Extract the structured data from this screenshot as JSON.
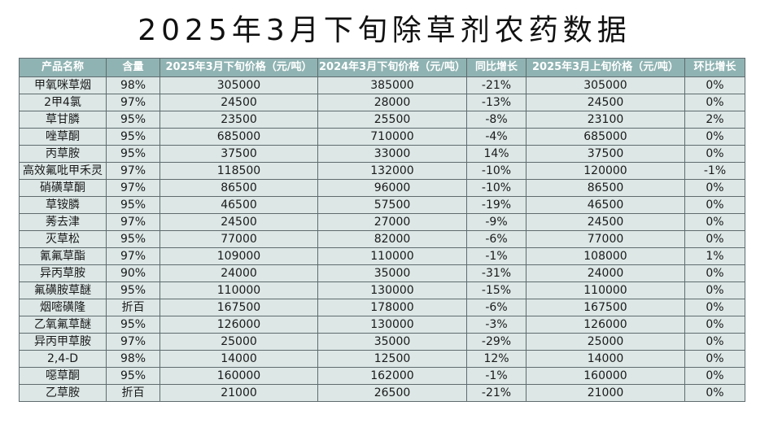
{
  "title": "2025年3月下旬除草剂农药数据",
  "table": {
    "headers": [
      "产品名称",
      "含量",
      "2025年3月下旬价格（元/吨）",
      "2024年3月下旬价格（元/吨）",
      "同比增长",
      "2025年3月上旬价格（元/吨）",
      "环比增长"
    ],
    "rows": [
      [
        "甲氧咪草烟",
        "98%",
        "305000",
        "385000",
        "-21%",
        "305000",
        "0%"
      ],
      [
        "2甲4氯",
        "97%",
        "24500",
        "28000",
        "-13%",
        "24500",
        "0%"
      ],
      [
        "草甘膦",
        "95%",
        "23500",
        "25500",
        "-8%",
        "23100",
        "2%"
      ],
      [
        "唑草酮",
        "95%",
        "685000",
        "710000",
        "-4%",
        "685000",
        "0%"
      ],
      [
        "丙草胺",
        "95%",
        "37500",
        "33000",
        "14%",
        "37500",
        "0%"
      ],
      [
        "高效氟吡甲禾灵",
        "97%",
        "118500",
        "132000",
        "-10%",
        "120000",
        "-1%"
      ],
      [
        "硝磺草酮",
        "97%",
        "86500",
        "96000",
        "-10%",
        "86500",
        "0%"
      ],
      [
        "草铵膦",
        "95%",
        "46500",
        "57500",
        "-19%",
        "46500",
        "0%"
      ],
      [
        "莠去津",
        "97%",
        "24500",
        "27000",
        "-9%",
        "24500",
        "0%"
      ],
      [
        "灭草松",
        "95%",
        "77000",
        "82000",
        "-6%",
        "77000",
        "0%"
      ],
      [
        "氰氟草酯",
        "97%",
        "109000",
        "110000",
        "-1%",
        "108000",
        "1%"
      ],
      [
        "异丙草胺",
        "90%",
        "24000",
        "35000",
        "-31%",
        "24000",
        "0%"
      ],
      [
        "氟磺胺草醚",
        "95%",
        "110000",
        "130000",
        "-15%",
        "110000",
        "0%"
      ],
      [
        "烟嘧磺隆",
        "折百",
        "167500",
        "178000",
        "-6%",
        "167500",
        "0%"
      ],
      [
        "乙氧氟草醚",
        "95%",
        "126000",
        "130000",
        "-3%",
        "126000",
        "0%"
      ],
      [
        "异丙甲草胺",
        "97%",
        "25000",
        "35000",
        "-29%",
        "25000",
        "0%"
      ],
      [
        "2,4-D",
        "98%",
        "14000",
        "12500",
        "12%",
        "14000",
        "0%"
      ],
      [
        "噁草酮",
        "95%",
        "160000",
        "162000",
        "-1%",
        "160000",
        "0%"
      ],
      [
        "乙草胺",
        "折百",
        "21000",
        "26500",
        "-21%",
        "21000",
        "0%"
      ]
    ]
  },
  "colors": {
    "header_bg": "#8fb3b2",
    "header_text": "#ffffff",
    "cell_bg": "#dce7e6",
    "border": "#5f6b6e"
  }
}
